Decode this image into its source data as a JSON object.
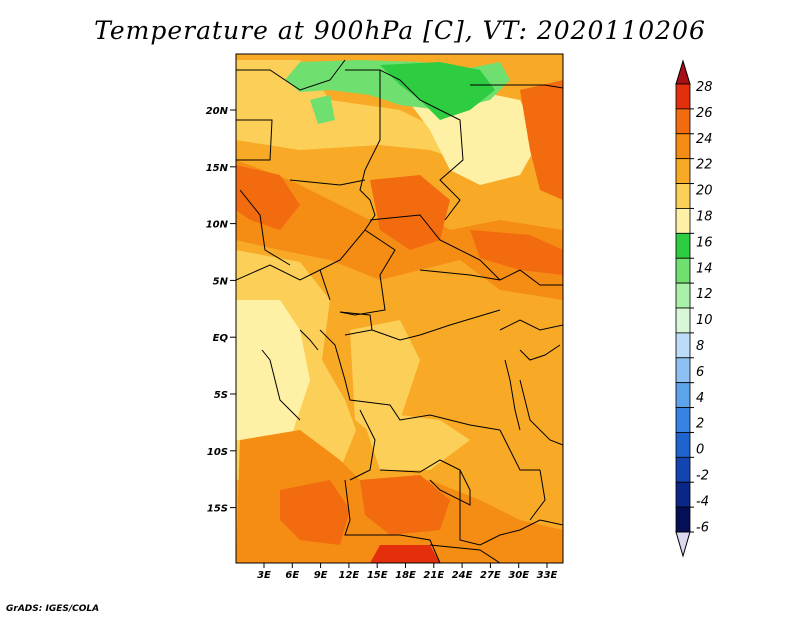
{
  "title": "Temperature at 900hPa [C], VT: 2020110206",
  "credit": "GrADS: IGES/COLA",
  "map": {
    "lat_labels": [
      "20N",
      "15N",
      "10N",
      "5N",
      "EQ",
      "5S",
      "10S",
      "15S"
    ],
    "lon_labels": [
      "3E",
      "6E",
      "9E",
      "12E",
      "15E",
      "18E",
      "21E",
      "24E",
      "27E",
      "30E",
      "33E"
    ]
  },
  "colorbar": {
    "levels": [
      "28",
      "26",
      "24",
      "22",
      "20",
      "18",
      "16",
      "14",
      "12",
      "10",
      "8",
      "6",
      "4",
      "2",
      "0",
      "-2",
      "-4",
      "-6"
    ],
    "colors": [
      "#a50f15",
      "#e32f0c",
      "#f26b0f",
      "#f58c14",
      "#f8aa27",
      "#fbcf58",
      "#fef1a5",
      "#2ecc40",
      "#6fe06f",
      "#a9f0a9",
      "#d8f7d8",
      "#bcdcf7",
      "#8cc1f1",
      "#5da3ea",
      "#3683e2",
      "#1f63cf",
      "#1444b0",
      "#0a2686",
      "#050f55",
      "#dcd8f0"
    ]
  },
  "colors": {
    "orange_base": "#f8aa27",
    "dark_orange": "#f26b0f",
    "light_yellow": "#fef1a5",
    "green": "#2ecc40"
  }
}
